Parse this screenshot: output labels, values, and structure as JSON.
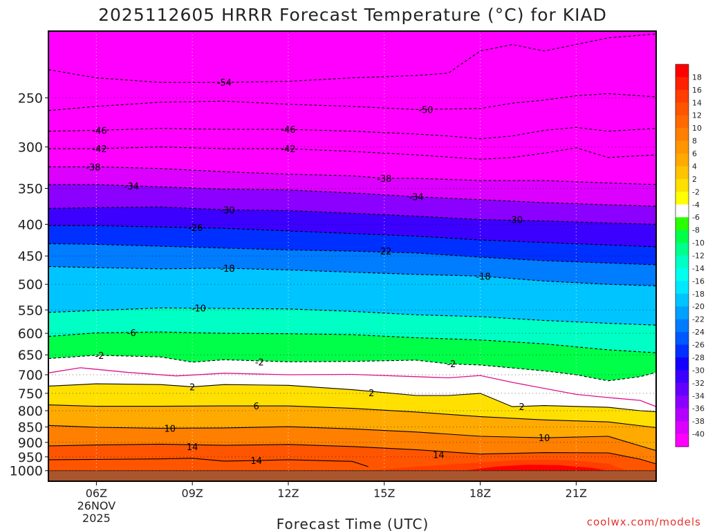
{
  "chart_data": {
    "type": "heatmap",
    "title": "2025112605 HRRR Forecast Temperature (°C) for KIAD",
    "xlabel": "Forecast Time (UTC)",
    "ylabel": "",
    "credit": "coolwx.com/models",
    "x_axis": {
      "range_hours_utc": [
        4.5,
        23.5
      ],
      "ticks": [
        {
          "hour": 6,
          "label": "06Z",
          "sublabels": [
            "26NOV",
            "2025"
          ]
        },
        {
          "hour": 9,
          "label": "09Z"
        },
        {
          "hour": 12,
          "label": "12Z"
        },
        {
          "hour": 15,
          "label": "15Z"
        },
        {
          "hour": 18,
          "label": "18Z"
        },
        {
          "hour": 21,
          "label": "21Z"
        }
      ]
    },
    "y_axis": {
      "units": "hPa",
      "scale": "log",
      "inverted": true,
      "range": [
        1040,
        195
      ],
      "ticks": [
        250,
        300,
        350,
        400,
        450,
        500,
        550,
        600,
        650,
        700,
        750,
        800,
        850,
        900,
        950,
        1000
      ]
    },
    "grid": true,
    "surface_pressure_hpa": 1000,
    "colorbar": {
      "placement": "right",
      "labels": [
        "18",
        "16",
        "14",
        "12",
        "10",
        "8",
        "6",
        "4",
        "2",
        "-2",
        "-4",
        "-6",
        "-8",
        "-10",
        "-12",
        "-14",
        "-16",
        "-18",
        "-20",
        "-22",
        "-24",
        "-26",
        "-28",
        "-30",
        "-32",
        "-34",
        "-36",
        "-38",
        "-40"
      ],
      "colors": [
        "#ff0000",
        "#ff2000",
        "#ff3e00",
        "#ff5500",
        "#ff6a00",
        "#ff8000",
        "#ff9600",
        "#ffaa00",
        "#ffc400",
        "#ffe000",
        "#ffff00",
        "#ffffff",
        "#2aff00",
        "#00ff48",
        "#00ff8c",
        "#00ffc4",
        "#00ffee",
        "#00e8ff",
        "#00c4ff",
        "#00a0ff",
        "#007cff",
        "#0058ff",
        "#0030ff",
        "#1400ff",
        "#3c00ff",
        "#6400ff",
        "#8c00ff",
        "#b400ff",
        "#dc00ff",
        "#ff00ff"
      ]
    },
    "contours": [
      {
        "value": -54,
        "style": "dashed",
        "points": [
          [
            4.5,
            225
          ],
          [
            6,
            232
          ],
          [
            8,
            236
          ],
          [
            10,
            236
          ],
          [
            12,
            235
          ],
          [
            14,
            232
          ],
          [
            16,
            230
          ],
          [
            17,
            228
          ],
          [
            18,
            210
          ],
          [
            19,
            205
          ],
          [
            20,
            210
          ],
          [
            21,
            205
          ],
          [
            22,
            200
          ],
          [
            23.5,
            197
          ]
        ],
        "labels": [
          [
            10,
            236
          ]
        ]
      },
      {
        "value": -50,
        "style": "dashed",
        "points": [
          [
            4.5,
            262
          ],
          [
            6,
            258
          ],
          [
            8,
            254
          ],
          [
            10,
            253
          ],
          [
            12,
            256
          ],
          [
            14,
            258
          ],
          [
            16,
            261
          ],
          [
            18,
            260
          ],
          [
            19,
            255
          ],
          [
            20,
            252
          ],
          [
            21,
            248
          ],
          [
            22,
            246
          ],
          [
            23.5,
            249
          ]
        ],
        "labels": [
          [
            16.3,
            261
          ]
        ]
      },
      {
        "value": -46,
        "style": "dashed",
        "points": [
          [
            4.5,
            283
          ],
          [
            6,
            282
          ],
          [
            8,
            280
          ],
          [
            10,
            281
          ],
          [
            12,
            281
          ],
          [
            14,
            283
          ],
          [
            16,
            286
          ],
          [
            17,
            288
          ],
          [
            18,
            291
          ],
          [
            19,
            288
          ],
          [
            20,
            282
          ],
          [
            21,
            279
          ],
          [
            22,
            283
          ],
          [
            23.5,
            280
          ]
        ],
        "labels": [
          [
            6.1,
            282
          ],
          [
            12,
            281
          ]
        ]
      },
      {
        "value": -42,
        "style": "dashed",
        "points": [
          [
            4.5,
            302
          ],
          [
            6,
            302
          ],
          [
            8,
            300
          ],
          [
            10,
            302
          ],
          [
            12,
            302
          ],
          [
            14,
            305
          ],
          [
            16,
            309
          ],
          [
            18,
            314
          ],
          [
            19,
            312
          ],
          [
            20,
            307
          ],
          [
            21,
            301
          ],
          [
            22,
            312
          ],
          [
            23.5,
            309
          ]
        ],
        "labels": [
          [
            6.1,
            302
          ],
          [
            12,
            302
          ]
        ]
      },
      {
        "value": -38,
        "style": "dashed",
        "points": [
          [
            4.5,
            323
          ],
          [
            6,
            323
          ],
          [
            8,
            325
          ],
          [
            10,
            329
          ],
          [
            12,
            332
          ],
          [
            14,
            334
          ],
          [
            15,
            337
          ],
          [
            16,
            337
          ],
          [
            18,
            340
          ],
          [
            20,
            340
          ],
          [
            22,
            343
          ],
          [
            23.5,
            345
          ]
        ],
        "labels": [
          [
            5.9,
            323
          ],
          [
            15,
            337
          ]
        ]
      },
      {
        "value": -34,
        "style": "dashed",
        "points": [
          [
            4.5,
            345
          ],
          [
            6,
            345
          ],
          [
            8,
            348
          ],
          [
            10,
            351
          ],
          [
            12,
            352
          ],
          [
            14,
            356
          ],
          [
            16,
            361
          ],
          [
            18,
            365
          ],
          [
            20,
            369
          ],
          [
            22,
            372
          ],
          [
            23.5,
            374
          ]
        ],
        "labels": [
          [
            7.1,
            347
          ],
          [
            16,
            361
          ]
        ]
      },
      {
        "value": -30,
        "style": "dashed",
        "points": [
          [
            4.5,
            377
          ],
          [
            6,
            376
          ],
          [
            8,
            375
          ],
          [
            10,
            379
          ],
          [
            12,
            380
          ],
          [
            14,
            384
          ],
          [
            16,
            388
          ],
          [
            18,
            393
          ],
          [
            20,
            395
          ],
          [
            22,
            398
          ],
          [
            23.5,
            400
          ]
        ],
        "labels": [
          [
            10.1,
            379
          ],
          [
            19.1,
            393
          ]
        ]
      },
      {
        "value": -26,
        "style": "dashed",
        "points": [
          [
            4.5,
            402
          ],
          [
            6,
            402
          ],
          [
            8,
            404
          ],
          [
            10,
            406
          ],
          [
            12,
            410
          ],
          [
            14,
            414
          ],
          [
            16,
            418
          ],
          [
            18,
            424
          ],
          [
            20,
            428
          ],
          [
            22,
            432
          ],
          [
            23.5,
            435
          ]
        ],
        "labels": [
          [
            9.1,
            405
          ]
        ]
      },
      {
        "value": -22,
        "style": "dashed",
        "points": [
          [
            4.5,
            430
          ],
          [
            6,
            431
          ],
          [
            8,
            434
          ],
          [
            10,
            437
          ],
          [
            12,
            440
          ],
          [
            14,
            442
          ],
          [
            16,
            445
          ],
          [
            18,
            452
          ],
          [
            20,
            458
          ],
          [
            22,
            462
          ],
          [
            23.5,
            465
          ]
        ],
        "labels": [
          [
            15,
            442
          ]
        ]
      },
      {
        "value": -18,
        "style": "dashed",
        "points": [
          [
            4.5,
            468
          ],
          [
            6,
            470
          ],
          [
            8,
            472
          ],
          [
            10,
            471
          ],
          [
            12,
            474
          ],
          [
            14,
            478
          ],
          [
            16,
            482
          ],
          [
            18,
            485
          ],
          [
            20,
            494
          ],
          [
            22,
            500
          ],
          [
            23.5,
            503
          ]
        ],
        "labels": [
          [
            10.1,
            471
          ],
          [
            18.1,
            485
          ]
        ]
      },
      {
        "value": -10,
        "style": "dashed",
        "points": [
          [
            4.5,
            555
          ],
          [
            6,
            551
          ],
          [
            8,
            546
          ],
          [
            10,
            547
          ],
          [
            12,
            548
          ],
          [
            14,
            553
          ],
          [
            16,
            560
          ],
          [
            18,
            564
          ],
          [
            20,
            572
          ],
          [
            22,
            578
          ],
          [
            23.5,
            582
          ]
        ],
        "labels": [
          [
            9.2,
            546
          ]
        ]
      },
      {
        "value": -6,
        "style": "dashed",
        "points": [
          [
            4.5,
            607
          ],
          [
            6,
            599
          ],
          [
            8,
            597
          ],
          [
            10,
            600
          ],
          [
            12,
            601
          ],
          [
            14,
            603
          ],
          [
            16,
            610
          ],
          [
            18,
            615
          ],
          [
            20,
            624
          ],
          [
            22,
            638
          ],
          [
            23.5,
            645
          ]
        ],
        "labels": [
          [
            7.1,
            598
          ]
        ]
      },
      {
        "value": -2,
        "style": "dashed",
        "points": [
          [
            4.5,
            659
          ],
          [
            6,
            651
          ],
          [
            8,
            655
          ],
          [
            9,
            668
          ],
          [
            10,
            662
          ],
          [
            12,
            667
          ],
          [
            14,
            666
          ],
          [
            16,
            663
          ],
          [
            17,
            672
          ],
          [
            18,
            675
          ],
          [
            20,
            690
          ],
          [
            21,
            700
          ],
          [
            22,
            716
          ],
          [
            23,
            705
          ],
          [
            23.5,
            694
          ]
        ],
        "labels": [
          [
            6.1,
            651
          ],
          [
            11.1,
            667
          ],
          [
            17.1,
            672
          ]
        ]
      },
      {
        "value": 0,
        "style": "magenta",
        "points": [
          [
            4.5,
            695
          ],
          [
            5.5,
            682
          ],
          [
            7,
            694
          ],
          [
            8.5,
            703
          ],
          [
            10,
            696
          ],
          [
            12,
            700
          ],
          [
            14,
            699
          ],
          [
            16,
            705
          ],
          [
            17,
            708
          ],
          [
            18,
            702
          ],
          [
            19,
            720
          ],
          [
            21,
            753
          ],
          [
            22,
            762
          ],
          [
            23,
            770
          ],
          [
            23.5,
            788
          ]
        ],
        "labels": []
      },
      {
        "value": 2,
        "style": "solid",
        "points": [
          [
            4.5,
            730
          ],
          [
            6,
            724
          ],
          [
            8,
            726
          ],
          [
            9,
            732
          ],
          [
            10,
            726
          ],
          [
            12,
            728
          ],
          [
            14,
            740
          ],
          [
            16,
            756
          ],
          [
            17,
            756
          ],
          [
            18,
            750
          ],
          [
            19,
            788
          ],
          [
            20,
            785
          ],
          [
            22,
            790
          ],
          [
            23,
            800
          ],
          [
            23.5,
            803
          ]
        ],
        "labels": [
          [
            9,
            732
          ],
          [
            14.6,
            748
          ],
          [
            19.3,
            788
          ]
        ]
      },
      {
        "value": 6,
        "style": "solid",
        "points": [
          [
            4.5,
            783
          ],
          [
            6,
            787
          ],
          [
            8,
            787
          ],
          [
            10,
            786
          ],
          [
            12,
            786
          ],
          [
            14,
            793
          ],
          [
            16,
            804
          ],
          [
            18,
            818
          ],
          [
            20,
            828
          ],
          [
            22,
            834
          ],
          [
            23.5,
            852
          ]
        ],
        "labels": [
          [
            11,
            786
          ]
        ]
      },
      {
        "value": 10,
        "style": "solid",
        "points": [
          [
            4.5,
            845
          ],
          [
            6,
            851
          ],
          [
            8,
            854
          ],
          [
            10,
            853
          ],
          [
            12,
            849
          ],
          [
            14,
            856
          ],
          [
            16,
            866
          ],
          [
            18,
            880
          ],
          [
            20,
            885
          ],
          [
            22,
            880
          ],
          [
            23,
            912
          ],
          [
            23.5,
            928
          ]
        ],
        "labels": [
          [
            8.3,
            854
          ],
          [
            20,
            885
          ]
        ]
      },
      {
        "value": 14,
        "style": "solid",
        "points": [
          [
            4.5,
            912
          ],
          [
            6,
            909
          ],
          [
            8,
            906
          ],
          [
            10,
            910
          ],
          [
            12,
            907
          ],
          [
            14,
            914
          ],
          [
            16,
            925
          ],
          [
            18,
            940
          ],
          [
            20,
            935
          ],
          [
            22,
            936
          ],
          [
            23,
            958
          ],
          [
            23.5,
            975
          ]
        ],
        "labels": [
          [
            9,
            914
          ],
          [
            16.7,
            942
          ]
        ]
      },
      {
        "value": 14,
        "style": "solid",
        "points": [
          [
            4.5,
            960
          ],
          [
            6,
            959
          ],
          [
            8,
            957
          ],
          [
            9,
            955
          ],
          [
            10,
            965
          ],
          [
            11,
            963
          ],
          [
            12,
            960
          ],
          [
            14,
            966
          ],
          [
            14.5,
            985
          ]
        ],
        "labels": [
          [
            11,
            963
          ]
        ]
      }
    ]
  }
}
